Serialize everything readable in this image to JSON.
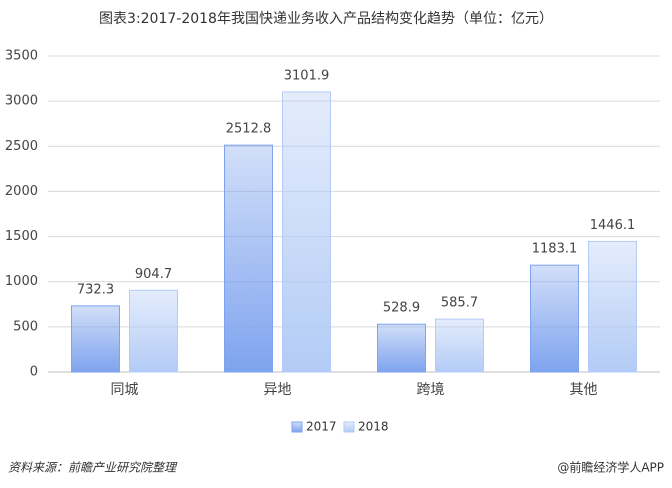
{
  "chart_data": {
    "type": "bar",
    "title": "图表3:2017-2018年我国快递业务收入产品结构变化趋势（单位：亿元）",
    "categories": [
      "同城",
      "异地",
      "跨境",
      "其他"
    ],
    "series": [
      {
        "name": "2017",
        "color": "#7ea3ee",
        "values": [
          732.3,
          2512.8,
          528.9,
          1183.1
        ]
      },
      {
        "name": "2018",
        "color": "#b3cbf6",
        "values": [
          904.7,
          3101.9,
          585.7,
          1446.1
        ]
      }
    ],
    "ylim": [
      0,
      3500
    ],
    "yticks": [
      0,
      500,
      1000,
      1500,
      2000,
      2500,
      3000,
      3500
    ],
    "grid": true,
    "legend": "bottom",
    "source": "资料来源：前瞻产业研究院整理",
    "credit": "@前瞻经济学人APP"
  }
}
